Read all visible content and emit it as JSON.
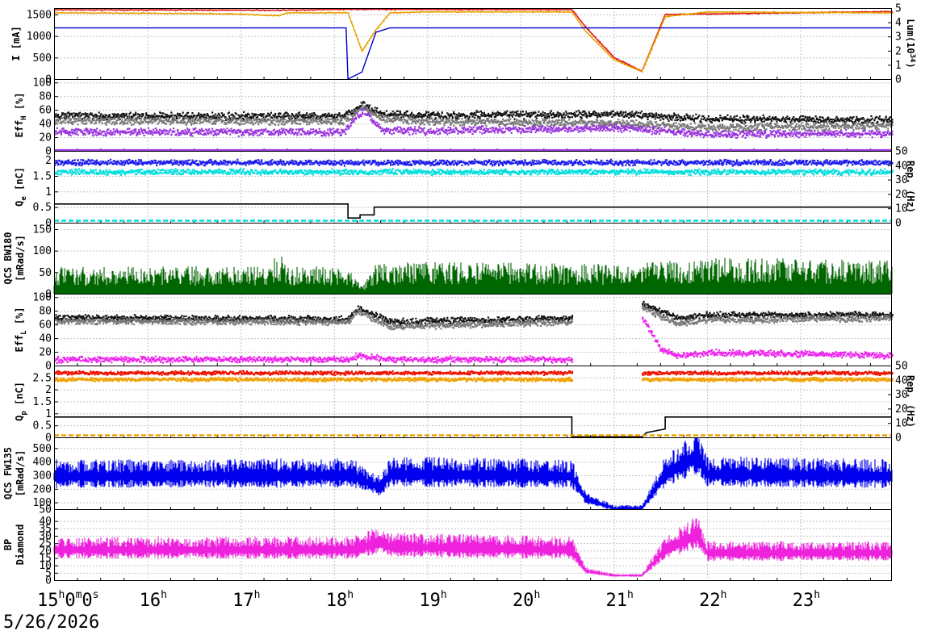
{
  "chart_data": {
    "type": "line",
    "x_start_label": "15h0m0s",
    "date_label": "5/26/2026",
    "x_ticks": [
      {
        "hour": 15,
        "h": "15",
        "rest": "0m0s"
      },
      {
        "hour": 16,
        "h": "16",
        "rest": ""
      },
      {
        "hour": 17,
        "h": "17",
        "rest": ""
      },
      {
        "hour": 18,
        "h": "18",
        "rest": ""
      },
      {
        "hour": 19,
        "h": "19",
        "rest": ""
      },
      {
        "hour": 20,
        "h": "20",
        "rest": ""
      },
      {
        "hour": 21,
        "h": "21",
        "rest": ""
      },
      {
        "hour": 22,
        "h": "22",
        "rest": ""
      },
      {
        "hour": 23,
        "h": "23",
        "rest": ""
      }
    ],
    "xlim": [
      15.0,
      23.98
    ],
    "grid": true,
    "panels": [
      {
        "id": "current",
        "ylabel": [
          "I [mA]"
        ],
        "ylim": [
          0,
          1650
        ],
        "yticks": [
          0,
          500,
          1000,
          1500
        ],
        "right_ylabel": "Lum(10^34)",
        "right_ylim": [
          0,
          5
        ],
        "right_yticks": [
          0,
          1,
          2,
          3,
          4,
          5
        ],
        "colors": {
          "her": "#dd1111",
          "ler": "#e8a000",
          "lum": "#0000cc"
        },
        "series": [
          {
            "key": "her",
            "x": [
              15.0,
              17.4,
              18.15,
              18.2,
              18.45,
              18.6,
              20.55,
              20.7,
              21.0,
              21.3,
              21.55,
              23.98
            ],
            "y": [
              1610,
              1600,
              1620,
              1620,
              1620,
              1620,
              1615,
              1200,
              500,
              180,
              1500,
              1570
            ]
          },
          {
            "key": "ler",
            "x": [
              15.0,
              16.0,
              17.0,
              17.4,
              17.5,
              18.15,
              18.3,
              18.45,
              18.6,
              19.0,
              20.55,
              20.7,
              21.0,
              21.3,
              21.55,
              22.0,
              23.98
            ],
            "y": [
              1540,
              1530,
              1510,
              1470,
              1540,
              1540,
              650,
              1150,
              1540,
              1560,
              1560,
              1100,
              450,
              170,
              1450,
              1560,
              1540
            ]
          },
          {
            "key": "lum",
            "x": [
              15.0,
              18.13,
              18.15,
              18.3,
              18.45,
              18.6,
              20.55,
              23.98
            ],
            "y": [
              3.6,
              3.6,
              0.0,
              0.5,
              3.3,
              3.6,
              3.6,
              3.6
            ]
          }
        ]
      },
      {
        "id": "eff_h",
        "ylabel": [
          "Eff",
          "H",
          " [%]"
        ],
        "ylim": [
          0,
          105
        ],
        "yticks": [
          0,
          20,
          40,
          60,
          80,
          100
        ],
        "colors": {
          "black": "#111111",
          "gray": "#777777",
          "purple": "#9933dd"
        },
        "series": [
          {
            "key": "black",
            "x": [
              15.0,
              18.1,
              18.3,
              18.5,
              19.0,
              21.0,
              22.0,
              23.98
            ],
            "y": [
              52,
              52,
              70,
              55,
              53,
              55,
              48,
              46
            ]
          },
          {
            "key": "gray",
            "x": [
              15.0,
              18.1,
              18.3,
              18.5,
              19.0,
              21.0,
              22.0,
              23.98
            ],
            "y": [
              45,
              45,
              65,
              48,
              44,
              42,
              35,
              38
            ]
          },
          {
            "key": "purple",
            "x": [
              15.0,
              18.1,
              18.3,
              18.5,
              19.0,
              21.0,
              22.0,
              23.98
            ],
            "y": [
              29,
              29,
              60,
              32,
              30,
              35,
              26,
              27
            ]
          }
        ]
      },
      {
        "id": "q_e",
        "ylabel": [
          "Q",
          "e",
          " [nC]"
        ],
        "ylim": [
          0,
          2.3
        ],
        "yticks": [
          0,
          0.5,
          1,
          1.5,
          2
        ],
        "right_ylabel": "Rep. (Hz)",
        "right_ylim": [
          0,
          50
        ],
        "right_yticks": [
          0,
          10,
          20,
          30,
          40,
          50
        ],
        "colors": {
          "charge_hi": "#1a1aee",
          "charge_lo": "#00dddd",
          "rep": "#000000",
          "pink": "#ff33cc"
        },
        "series": [
          {
            "key": "charge_hi",
            "x": [
              15.0,
              18.15,
              18.25,
              23.98
            ],
            "y": [
              1.95,
              1.95,
              1.95,
              1.95
            ]
          },
          {
            "key": "charge_lo",
            "x": [
              15.0,
              18.15,
              18.25,
              23.98
            ],
            "y": [
              1.65,
              1.65,
              1.65,
              1.65
            ]
          },
          {
            "key": "rep",
            "x": [
              15.0,
              18.15,
              18.15,
              18.28,
              18.28,
              18.43,
              18.43,
              23.98
            ],
            "y": [
              0.6,
              0.6,
              0.15,
              0.15,
              0.25,
              0.25,
              0.5,
              0.5
            ]
          }
        ]
      },
      {
        "id": "qcs_bw180",
        "ylabel": [
          "QCS BW180",
          "[mRad/s]"
        ],
        "ylim": [
          0,
          165
        ],
        "yticks": [
          0,
          50,
          100,
          150
        ],
        "colors": {
          "main": "#006600"
        },
        "series": [
          {
            "key": "main",
            "x": [
              15.0,
              17.3,
              17.4,
              17.5,
              18.15,
              18.3,
              18.45,
              19.0,
              21.0,
              22.0,
              23.98
            ],
            "y": [
              40,
              42,
              65,
              42,
              40,
              10,
              45,
              48,
              45,
              55,
              50
            ]
          }
        ]
      },
      {
        "id": "eff_l",
        "ylabel": [
          "Eff",
          "L",
          " [%]"
        ],
        "ylim": [
          0,
          105
        ],
        "yticks": [
          0,
          20,
          40,
          60,
          80,
          100
        ],
        "colors": {
          "black": "#111111",
          "gray": "#777777",
          "magenta": "#ee22ee"
        },
        "series": [
          {
            "key": "black",
            "x": [
              15.0,
              18.15,
              18.25,
              18.6,
              20.55
            ],
            "y": [
              71,
              69,
              85,
              65,
              70
            ]
          },
          {
            "key": "black",
            "x": [
              21.3,
              21.5,
              21.7,
              22.0,
              23.98
            ],
            "y": [
              92,
              80,
              70,
              75,
              75
            ]
          },
          {
            "key": "gray",
            "x": [
              15.0,
              18.15,
              18.25,
              18.6,
              20.55
            ],
            "y": [
              66,
              65,
              80,
              58,
              65
            ]
          },
          {
            "key": "gray",
            "x": [
              21.3,
              21.5,
              21.7,
              22.0,
              23.98
            ],
            "y": [
              88,
              72,
              62,
              68,
              70
            ]
          },
          {
            "key": "magenta",
            "x": [
              15.0,
              18.15,
              18.25,
              18.6,
              20.55
            ],
            "y": [
              10,
              10,
              15,
              10,
              10
            ]
          },
          {
            "key": "magenta",
            "x": [
              21.3,
              21.5,
              21.7,
              22.0,
              23.98
            ],
            "y": [
              70,
              25,
              15,
              20,
              16
            ]
          }
        ]
      },
      {
        "id": "q_p",
        "ylabel": [
          "Q",
          "p",
          " [nC]"
        ],
        "ylim": [
          0,
          3.0
        ],
        "yticks": [
          0,
          0.5,
          1,
          1.5,
          2,
          2.5
        ],
        "right_ylabel": "Rep. (Hz)",
        "right_ylim": [
          0,
          50
        ],
        "right_yticks": [
          0,
          10,
          20,
          30,
          40,
          50
        ],
        "colors": {
          "red": "#ee1100",
          "orange": "#f0a000",
          "rep": "#000000"
        },
        "series": [
          {
            "key": "red",
            "x": [
              15.0,
              20.55
            ],
            "y": [
              2.72,
              2.72
            ]
          },
          {
            "key": "red",
            "x": [
              21.3,
              23.98
            ],
            "y": [
              2.72,
              2.72
            ]
          },
          {
            "key": "orange",
            "x": [
              15.0,
              20.55
            ],
            "y": [
              2.45,
              2.45
            ]
          },
          {
            "key": "orange",
            "x": [
              21.3,
              23.98
            ],
            "y": [
              2.45,
              2.45
            ]
          },
          {
            "key": "rep",
            "x": [
              15.0,
              20.55,
              20.55,
              21.3,
              21.35,
              21.55,
              21.55,
              23.98
            ],
            "y": [
              0.85,
              0.85,
              0.02,
              0.02,
              0.2,
              0.35,
              0.85,
              0.85
            ]
          }
        ]
      },
      {
        "id": "qcs_fw135",
        "ylabel": [
          "QCS FW135",
          "[mRad/s]"
        ],
        "ylim": [
          50,
          580
        ],
        "yticks": [
          50,
          100,
          200,
          300,
          400,
          500
        ],
        "colors": {
          "main": "#0000ee"
        },
        "series": [
          {
            "key": "main",
            "x": [
              15.0,
              18.2,
              18.5,
              18.6,
              20.55,
              20.7,
              21.0,
              21.3,
              21.55,
              21.9,
              22.0,
              23.98
            ],
            "y": [
              285,
              290,
              200,
              300,
              285,
              120,
              55,
              55,
              300,
              430,
              300,
              285
            ]
          }
        ]
      },
      {
        "id": "bp_diamond",
        "ylabel": [
          "BP",
          "Diamond"
        ],
        "ylim": [
          0,
          48
        ],
        "yticks": [
          0,
          5,
          10,
          15,
          20,
          25,
          30,
          35,
          40
        ],
        "colors": {
          "main": "#ee22dd"
        },
        "series": [
          {
            "key": "main",
            "x": [
              15.0,
              18.2,
              18.5,
              18.6,
              20.55,
              20.7,
              21.0,
              21.3,
              21.55,
              21.9,
              22.0,
              23.98
            ],
            "y": [
              20,
              20,
              25,
              22,
              20,
              6,
              3,
              3,
              20,
              30,
              18,
              18
            ]
          }
        ]
      }
    ]
  }
}
